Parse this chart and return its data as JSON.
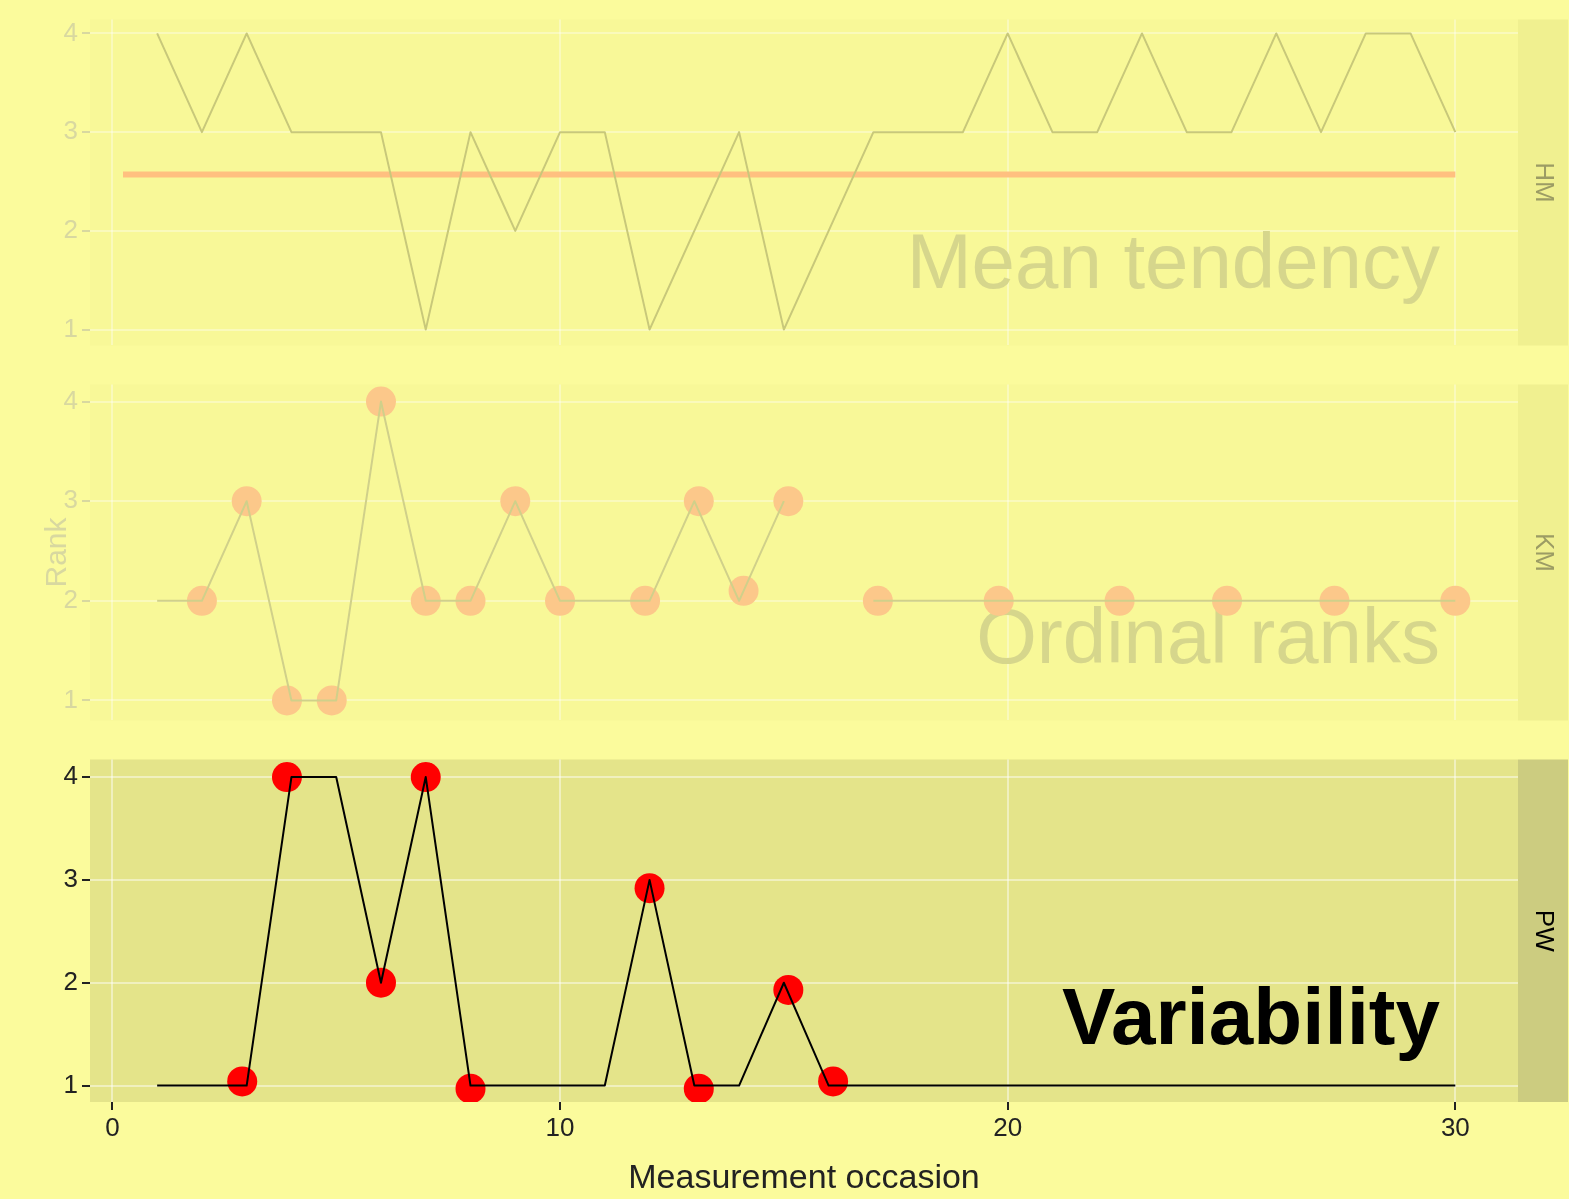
{
  "chart_data": [
    {
      "type": "line",
      "title": "HM",
      "xlim": [
        -0.5,
        31.4
      ],
      "xticks": [
        0,
        10,
        20,
        30
      ],
      "ylim": [
        0.84,
        4.14
      ],
      "yticks": [
        1,
        2,
        3,
        4
      ],
      "tick_labels": "y",
      "grid": true,
      "legend": false,
      "annotations": [
        "Mean tendency"
      ],
      "ref_lines": [
        {
          "axis": "y",
          "value": 2.57,
          "color": "#ffc080"
        }
      ],
      "series": [
        {
          "type": "line",
          "color": "#c8c87a",
          "marker": "none",
          "x": [
            1,
            2,
            3,
            4,
            5,
            6,
            7,
            8,
            9,
            10,
            11,
            12,
            13,
            14,
            15,
            16,
            17,
            18,
            19,
            20,
            21,
            22,
            23,
            24,
            25,
            26,
            27,
            28,
            29,
            30
          ],
          "values": [
            4,
            3,
            4,
            3,
            3,
            3,
            1,
            3,
            2,
            3,
            3,
            1,
            2,
            3,
            1,
            2,
            3,
            3,
            3,
            4,
            3,
            3,
            4,
            3,
            3,
            4,
            3,
            4,
            4,
            3
          ]
        }
      ]
    },
    {
      "type": "line",
      "title": "KM",
      "ylabel": "Rank",
      "xlim": [
        -0.5,
        31.4
      ],
      "xticks": [
        0,
        10,
        20,
        30
      ],
      "ylim": [
        0.8,
        4.17
      ],
      "yticks": [
        1,
        2,
        3,
        4
      ],
      "tick_labels": "y",
      "grid": true,
      "legend": false,
      "annotations": [
        "Ordinal ranks"
      ],
      "series": [
        {
          "type": "line",
          "color": "#d0d08a",
          "marker": "none",
          "x": [
            1,
            2,
            3,
            4,
            5,
            6,
            7,
            8,
            9,
            10,
            11,
            12,
            13,
            14,
            15,
            16,
            17,
            18,
            19,
            20,
            21,
            22,
            23,
            24,
            25,
            26,
            27,
            28,
            29,
            30
          ],
          "values": [
            2,
            2,
            3,
            1,
            1,
            4,
            2,
            2,
            3,
            2,
            2,
            2,
            3,
            2,
            3,
            null,
            2,
            2,
            2,
            2,
            2,
            2,
            2,
            2,
            2,
            2,
            2,
            2,
            2,
            2
          ]
        },
        {
          "type": "scatter",
          "color": "#fcc88a",
          "marker": "circle",
          "x": [
            2,
            3,
            3.9,
            4.9,
            6,
            7,
            8,
            9,
            10,
            11.9,
            13.1,
            14.1,
            15.1,
            17.1,
            19.8,
            22.5,
            24.9,
            27.3,
            30
          ],
          "values": [
            2,
            3,
            1,
            1,
            4,
            2,
            2,
            3,
            2,
            2,
            3,
            2.1,
            3,
            2,
            2,
            2,
            2,
            2,
            2
          ]
        }
      ]
    },
    {
      "type": "line",
      "title": "PW",
      "xlabel": "Measurement occasion",
      "xlim": [
        -0.5,
        31.4
      ],
      "xticks": [
        0,
        10,
        20,
        30
      ],
      "ylim": [
        0.84,
        4.17
      ],
      "yticks": [
        1,
        2,
        3,
        4
      ],
      "grid": true,
      "legend": false,
      "annotations": [
        "Variability"
      ],
      "series": [
        {
          "type": "line",
          "color": "#000000",
          "marker": "none",
          "x": [
            1,
            2,
            3,
            4,
            5,
            6,
            7,
            8,
            9,
            10,
            11,
            12,
            13,
            14,
            15,
            16,
            17,
            18,
            19,
            20,
            21,
            22,
            23,
            24,
            25,
            26,
            27,
            28,
            29,
            30
          ],
          "values": [
            1,
            1,
            1,
            4,
            4,
            2,
            4,
            1,
            1,
            1,
            1,
            3,
            1,
            1,
            2,
            1,
            1,
            1,
            1,
            1,
            1,
            1,
            1,
            1,
            1,
            1,
            1,
            1,
            1,
            1
          ]
        },
        {
          "type": "scatter",
          "color": "#ff0000",
          "marker": "circle",
          "x": [
            2.9,
            3.9,
            6,
            7,
            8,
            12,
            13.1,
            15.1,
            16.1
          ],
          "values": [
            1.04,
            4,
            2,
            4,
            0.97,
            2.92,
            0.97,
            1.93,
            1.04
          ]
        }
      ]
    }
  ]
}
